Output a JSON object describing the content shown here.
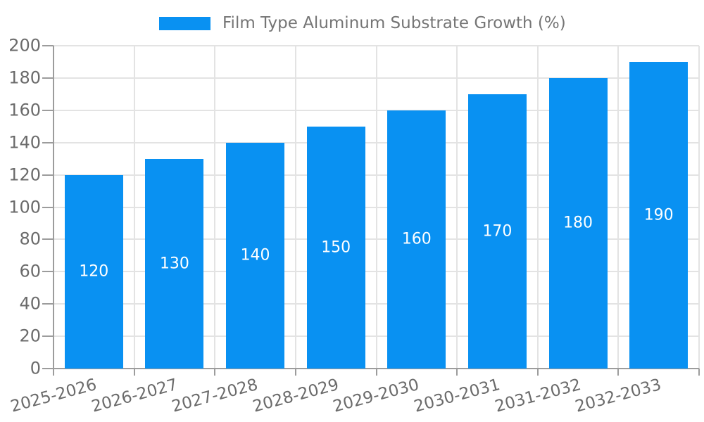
{
  "legend": {
    "label": "Film Type Aluminum Substrate Growth (%)"
  },
  "chart_data": {
    "type": "bar",
    "title": "",
    "xlabel": "",
    "ylabel": "",
    "categories": [
      "2025-2026",
      "2026-2027",
      "2027-2028",
      "2028-2029",
      "2029-2030",
      "2030-2031",
      "2031-2032",
      "2032-2033"
    ],
    "series": [
      {
        "name": "Film Type Aluminum Substrate Growth (%)",
        "values": [
          120,
          130,
          140,
          150,
          160,
          170,
          180,
          190
        ]
      }
    ],
    "value_labels": [
      "120",
      "130",
      "140",
      "150",
      "160",
      "170",
      "180",
      "190"
    ],
    "ylim": [
      0,
      200
    ],
    "yticks": [
      0,
      20,
      40,
      60,
      80,
      100,
      120,
      140,
      160,
      180,
      200
    ],
    "grid": true,
    "grid_vertical_at_category_boundaries": true,
    "legend_position": "top-center",
    "x_tick_label_rotation_deg": -15,
    "colors": {
      "bar": "#0991F2",
      "grid": "#e3e3e3",
      "axis": "#9c9c9c",
      "tick_label": "#6b6b6b",
      "legend_text": "#757575",
      "value_label": "#ffffff"
    }
  }
}
